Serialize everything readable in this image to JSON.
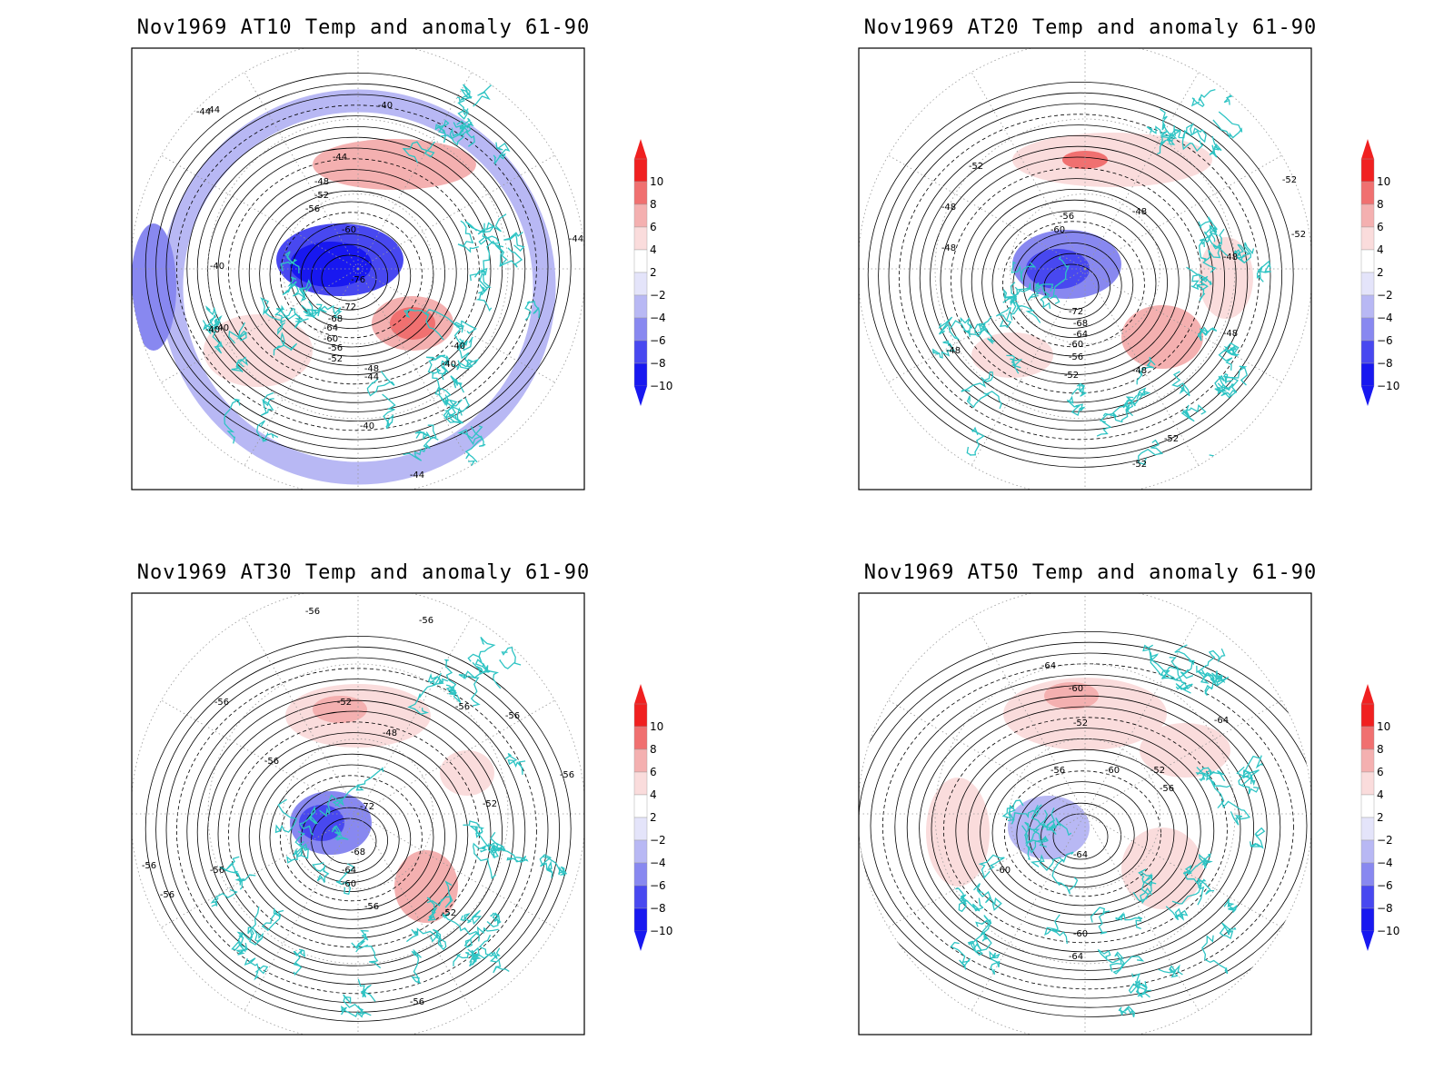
{
  "colors": {
    "coast": "#2ec4c4",
    "contour": "#000000",
    "grid": "#999999",
    "colorbar": [
      "#1818f0",
      "#4848f0",
      "#8888f0",
      "#b8b8f4",
      "#e4e4fa",
      "#ffffff",
      "#fadcdc",
      "#f4b0b0",
      "#f07070",
      "#f02020"
    ]
  },
  "colorbar_labels": [
    "10",
    "8",
    "6",
    "4",
    "2",
    "−2",
    "−4",
    "−6",
    "−8",
    "−10"
  ],
  "panels": [
    {
      "title": "Nov1969 AT10 Temp and anomaly 61-90",
      "contour_labels": [
        "-40",
        "-44",
        "-44",
        "-40",
        "-48",
        "-52",
        "-56",
        "-60",
        "-76",
        "-72",
        "-68",
        "-64",
        "-60",
        "-56",
        "-52",
        "-48",
        "-44",
        "-40",
        "-40",
        "-40",
        "-40",
        "-44",
        "-44",
        "-40",
        "-44"
      ]
    },
    {
      "title": "Nov1969 AT20 Temp and anomaly 61-90",
      "contour_labels": [
        "-52",
        "-48",
        "-56",
        "-60",
        "-48",
        "-72",
        "-68",
        "-64",
        "-60",
        "-56",
        "-52",
        "-48",
        "-48",
        "-48",
        "-48",
        "-52",
        "-52",
        "-52",
        "-48",
        "-52"
      ]
    },
    {
      "title": "Nov1969 AT30 Temp and anomaly 61-90",
      "contour_labels": [
        "-56",
        "-56",
        "-56",
        "-52",
        "-56",
        "-56",
        "-48",
        "-56",
        "-72",
        "-68",
        "-64",
        "-60",
        "-56",
        "-52",
        "-56",
        "-56",
        "-56",
        "-52",
        "-56",
        "-56"
      ]
    },
    {
      "title": "Nov1969 AT50 Temp and anomaly 61-90",
      "contour_labels": [
        "-64",
        "-60",
        "-52",
        "-64",
        "-56",
        "-60",
        "-52",
        "-56",
        "-64",
        "-60",
        "-60",
        "-64"
      ]
    }
  ]
}
